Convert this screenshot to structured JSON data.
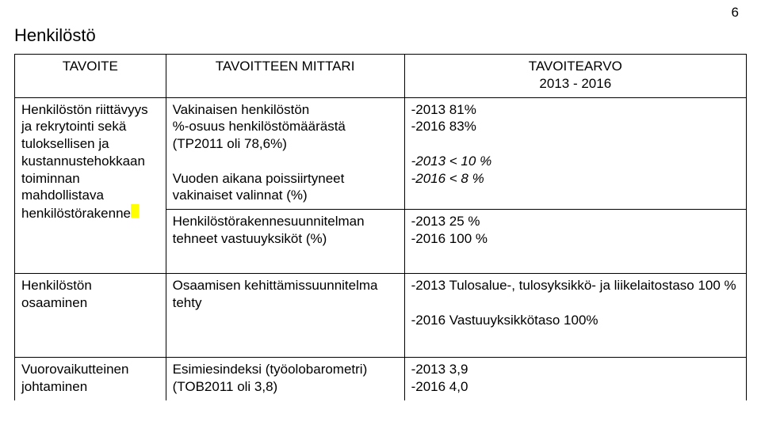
{
  "page_number": "6",
  "section_title": "Henkilöstö",
  "table": {
    "headers": {
      "col1": "TAVOITE",
      "col2": "TAVOITTEEN MITTARI",
      "col3_line1": "TAVOITEARVO",
      "col3_line2": "2013 - 2016"
    },
    "rows": [
      {
        "c1": "Henkilöstön riittävyys ja rekrytointi sekä tuloksellisen ja kustannustehokkaan toiminnan mahdollistava henkilöstörakenne",
        "c2": "Vakinaisen henkilöstön\n%-osuus henkilöstömäärästä\n(TP2011 oli 78,6%)\n\nVuoden aikana poissiirtyneet vakinaiset valinnat (%)",
        "c3": "-2013 81%\n-2016 83%\n\n-2013 < 10 %\n-2016 < 8 %"
      },
      {
        "c1": "",
        "c2": "Henkilöstörakennesuunnitelman tehneet vastuuyksiköt (%)",
        "c3": "-2013 25 %\n-2016 100 %"
      },
      {
        "c1": "Henkilöstön osaaminen",
        "c2": "Osaamisen kehittämissuunnitelma tehty",
        "c3": "-2013 Tulosalue-, tulosyksikkö- ja liikelaitostaso 100 %\n\n-2016 Vastuuyksikkötaso 100%"
      },
      {
        "c1": "Vuorovaikutteinen johtaminen",
        "c2": "Esimiesindeksi (työolobarometri)\n(TOB2011 oli 3,8)",
        "c3": "-2013 3,9\n-2016 4,0"
      }
    ]
  },
  "italics": {
    "row1_c3_italic_lines": "-2013 < 10 %\n-2016 < 8 %"
  }
}
